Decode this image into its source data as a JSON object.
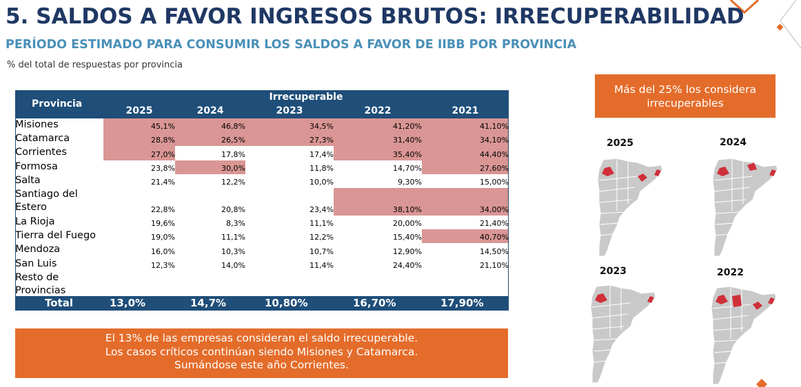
{
  "header": {
    "title": "5. SALDOS A FAVOR INGRESOS BRUTOS: IRRECUPERABILIDAD",
    "subtitle": "PERÍODO ESTIMADO PARA CONSUMIR LOS SALDOS A FAVOR DE IIBB POR PROVINCIA",
    "note": "% del total de respuestas por provincia"
  },
  "colors": {
    "title": "#1f3864",
    "subtitle": "#4a90b8",
    "table_header": "#1f4e79",
    "highlight": "#d99694",
    "accent": "#e46c2a",
    "map_gray": "#c9c9c9",
    "map_red": "#d0303a"
  },
  "table": {
    "col_provincia": "Provincia",
    "group_label": "Irrecuperable",
    "years": [
      "2025",
      "2024",
      "2023",
      "2022",
      "2021"
    ],
    "rows": [
      {
        "name": "Misiones",
        "values": [
          "45,1%",
          "46,8%",
          "34,5%",
          "41,20%",
          "41,10%"
        ],
        "highlight": [
          true,
          true,
          true,
          true,
          true
        ]
      },
      {
        "name": "Catamarca",
        "values": [
          "28,8%",
          "26,5%",
          "27,3%",
          "31,40%",
          "34,10%"
        ],
        "highlight": [
          true,
          true,
          true,
          true,
          true
        ]
      },
      {
        "name": "Corrientes",
        "values": [
          "27,0%",
          "17,8%",
          "17,4%",
          "35,40%",
          "44,40%"
        ],
        "highlight": [
          true,
          false,
          false,
          true,
          true
        ]
      },
      {
        "name": "Formosa",
        "values": [
          "23,8%",
          "30,0%",
          "11,8%",
          "14,70%",
          "27,60%"
        ],
        "highlight": [
          false,
          true,
          false,
          false,
          true
        ]
      },
      {
        "name": "Salta",
        "values": [
          "21,4%",
          "12,2%",
          "10,0%",
          "9,30%",
          "15,00%"
        ],
        "highlight": [
          false,
          false,
          false,
          false,
          false
        ]
      },
      {
        "name": "Santiago del Estero",
        "values": [
          "22,8%",
          "20,8%",
          "23,4%",
          "38,10%",
          "34,00%"
        ],
        "highlight": [
          false,
          false,
          false,
          true,
          true
        ]
      },
      {
        "name": "La Rioja",
        "values": [
          "19,6%",
          "8,3%",
          "11,1%",
          "20,00%",
          "21,40%"
        ],
        "highlight": [
          false,
          false,
          false,
          false,
          false
        ]
      },
      {
        "name": "Tierra del Fuego",
        "values": [
          "19,0%",
          "11,1%",
          "12,2%",
          "15,40%",
          "40,70%"
        ],
        "highlight": [
          false,
          false,
          false,
          false,
          true
        ]
      },
      {
        "name": "Mendoza",
        "values": [
          "16,0%",
          "10,3%",
          "10,7%",
          "12,90%",
          "14,50%"
        ],
        "highlight": [
          false,
          false,
          false,
          false,
          false
        ]
      },
      {
        "name": "San Luis",
        "values": [
          "12,3%",
          "14,0%",
          "11,4%",
          "24,40%",
          "21,10%"
        ],
        "highlight": [
          false,
          false,
          false,
          false,
          false
        ]
      },
      {
        "name": "Resto de Provincias",
        "values": [
          "",
          "",
          "",
          "",
          ""
        ],
        "highlight": [
          false,
          false,
          false,
          false,
          false
        ]
      }
    ],
    "total": {
      "label": "Total",
      "values": [
        "13,0%",
        "14,7%",
        "10,80%",
        "16,70%",
        "17,90%"
      ]
    }
  },
  "callout_bottom": {
    "lines": [
      "El 13% de las empresas consideran el saldo irrecuperable.",
      "Los casos críticos continúan siendo Misiones y Catamarca.",
      "Sumándose este año Corrientes."
    ]
  },
  "callout_right": {
    "text": "Más del 25% los considera irrecuperables"
  },
  "maps": [
    {
      "year": "2025",
      "icon": "argentina-map-icon"
    },
    {
      "year": "2024",
      "icon": "argentina-map-icon"
    },
    {
      "year": "2023",
      "icon": "argentina-map-icon"
    },
    {
      "year": "2022",
      "icon": "argentina-map-icon"
    }
  ]
}
